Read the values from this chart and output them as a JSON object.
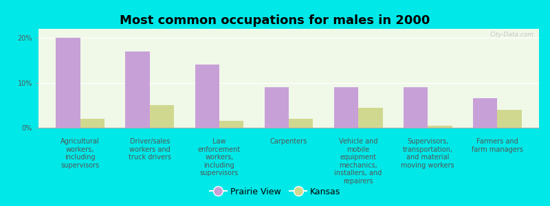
{
  "title": "Most common occupations for males in 2000",
  "categories": [
    "Agricultural\nworkers,\nincluding\nsupervisors",
    "Driver/sales\nworkers and\ntruck drivers",
    "Law\nenforcement\nworkers,\nincluding\nsupervisors",
    "Carpenters",
    "Vehicle and\nmobile\nequipment\nmechanics,\ninstallers, and\nrepairers",
    "Supervisors,\ntransportation,\nand material\nmoving workers",
    "Farmers and\nfarm managers"
  ],
  "prairie_view": [
    20.0,
    17.0,
    14.0,
    9.0,
    9.0,
    9.0,
    6.5
  ],
  "kansas": [
    2.0,
    5.0,
    1.5,
    2.0,
    4.5,
    0.5,
    4.0
  ],
  "prairie_view_color": "#c8a0d8",
  "kansas_color": "#d0d890",
  "background_color": "#00e8e8",
  "plot_bg_color": "#f0f8e8",
  "yticks": [
    0,
    10,
    20
  ],
  "ytick_labels": [
    "0%",
    "10%",
    "20%"
  ],
  "ylim": [
    0,
    22
  ],
  "legend_prairie_view": "Prairie View",
  "legend_kansas": "Kansas",
  "watermark": "City-Data.com",
  "title_fontsize": 13,
  "tick_fontsize": 7,
  "legend_fontsize": 9
}
